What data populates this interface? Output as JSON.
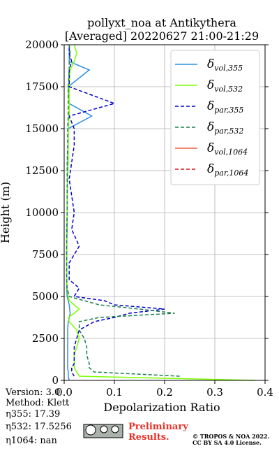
{
  "chart_data": {
    "type": "line",
    "title": [
      "pollyxt_noa at Antikythera",
      "[Averaged] 20220627 21:00-21:29"
    ],
    "x_label": "Depolarization Ratio",
    "y_label": "Height (m)",
    "y": [
      0,
      250,
      500,
      750,
      1000,
      1500,
      2000,
      2500,
      3000,
      3500,
      3750,
      4000,
      4250,
      4500,
      4750,
      5000,
      5500,
      6000,
      7000,
      8000,
      9000,
      10000,
      11000,
      12000,
      13000,
      14000,
      15000,
      15750,
      16500,
      17500,
      18500,
      19000,
      19500,
      20000
    ],
    "series": [
      {
        "name": "δvol,355",
        "color": "#2f8fdf",
        "dash": false,
        "values": [
          0.01,
          0.008,
          0.008,
          0.007,
          0.007,
          0.007,
          0.007,
          0.007,
          0.007,
          0.008,
          0.01,
          0.012,
          0.011,
          0.01,
          0.008,
          0.006,
          0.005,
          0.005,
          0.005,
          0.005,
          0.006,
          0.006,
          0.006,
          0.007,
          0.007,
          0.008,
          0.008,
          0.055,
          0.01,
          0.008,
          0.05,
          0.01,
          0.01,
          0.01
        ]
      },
      {
        "name": "δvol,532",
        "color": "#7fff00",
        "dash": false,
        "values": [
          0.38,
          0.03,
          0.025,
          0.02,
          0.02,
          0.02,
          0.025,
          0.03,
          0.025,
          0.01,
          0.008,
          0.02,
          0.03,
          0.02,
          0.01,
          0.008,
          0.006,
          0.005,
          0.005,
          0.005,
          0.005,
          0.006,
          0.006,
          0.007,
          0.008,
          0.008,
          0.008,
          0.01,
          0.01,
          0.01,
          0.012,
          0.02,
          0.025,
          0.02
        ]
      },
      {
        "name": "δpar,355",
        "color": "#0000cd",
        "dash": true,
        "values": [
          null,
          0.02,
          0.015,
          0.015,
          0.02,
          0.02,
          0.02,
          0.025,
          0.03,
          0.06,
          0.1,
          0.13,
          0.2,
          0.1,
          0.08,
          0.02,
          0.03,
          0.01,
          0.01,
          0.03,
          0.015,
          0.02,
          0.015,
          0.01,
          0.015,
          0.02,
          0.02,
          0.01,
          0.1,
          0.01,
          0.01,
          0.015,
          0.01,
          0.01
        ]
      },
      {
        "name": "δpar,532",
        "color": "#1a7f4b",
        "dash": true,
        "values": [
          null,
          0.23,
          0.06,
          0.05,
          0.05,
          0.045,
          0.045,
          0.04,
          0.03,
          0.03,
          0.07,
          0.22,
          0.15,
          0.07,
          0.04,
          0.01,
          0.006,
          0.005,
          0.005,
          0.005,
          0.005,
          0.006,
          0.006,
          0.006,
          0.006,
          0.007,
          0.007,
          0.008,
          0.008,
          0.008,
          0.01,
          0.01,
          0.012,
          0.01
        ]
      },
      {
        "name": "δvol,1064",
        "color": "#f25f3f",
        "dash": false,
        "values": [
          null,
          null,
          null,
          null,
          null,
          null,
          null,
          null,
          null,
          null,
          null,
          null,
          null,
          null,
          null,
          null,
          null,
          null,
          null,
          null,
          null,
          null,
          null,
          null,
          null,
          null,
          null,
          null,
          null,
          null,
          null,
          null,
          null,
          null
        ]
      },
      {
        "name": "δpar,1064",
        "color": "#d01515",
        "dash": true,
        "values": [
          null,
          null,
          null,
          null,
          null,
          null,
          null,
          null,
          null,
          null,
          null,
          null,
          null,
          null,
          null,
          null,
          null,
          null,
          null,
          null,
          null,
          null,
          null,
          null,
          null,
          null,
          null,
          null,
          null,
          null,
          null,
          null,
          null,
          null
        ]
      }
    ],
    "xlim": [
      0,
      0.4
    ],
    "xticks": [
      {
        "value": 0,
        "label": "0.0"
      },
      0.1,
      0.2,
      0.3,
      0.4
    ],
    "ylim": [
      0,
      20000
    ],
    "yticks": [
      0,
      2500,
      5000,
      7500,
      10000,
      12500,
      15000,
      17500,
      20000
    ],
    "grid": true,
    "legend": "upper right"
  },
  "footer": {
    "info": [
      "Version: 3.0",
      "Method: Klett",
      "η355:  17.39",
      "η532: 17.5256",
      "η1064:    nan"
    ],
    "notice": [
      "Preliminary",
      "Results."
    ],
    "copyright": [
      "© TROPOS & NOA 2022.",
      "CC BY SA 4.0 License."
    ]
  }
}
